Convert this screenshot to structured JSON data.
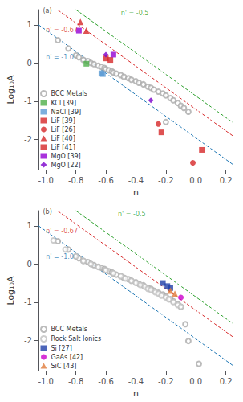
{
  "chart_data": [
    {
      "type": "scatter",
      "xlabel": "n",
      "ylabel": "Log₁₀A",
      "xlim": [
        -1.05,
        0.25
      ],
      "ylim": [
        -2.8,
        1.4
      ],
      "xticks": [
        {
          "value": -1.0,
          "label": "-1.0"
        },
        -0.8,
        -0.6,
        -0.4,
        -0.2,
        {
          "value": 0.0,
          "label": "0.0"
        },
        0.2
      ],
      "yticks": [
        -2,
        -1,
        0,
        1
      ],
      "grid": false,
      "legend": "lower left",
      "series": [
        {
          "type": "line",
          "color": "#2ca02c",
          "line_style": "dashed",
          "x": [
            -0.8,
            0.25
          ],
          "values": [
            1.399,
            -1.5725
          ]
        },
        {
          "type": "line",
          "color": "#d62728",
          "line_style": "dashed",
          "x": [
            -0.92,
            0.25
          ],
          "values": [
            1.3886,
            -1.9225
          ]
        },
        {
          "type": "line",
          "color": "#1f77b4",
          "line_style": "dashed",
          "x": [
            -1.05,
            0.25
          ],
          "values": [
            1.0065,
            -2.6725
          ]
        },
        {
          "name": "BCC Metals",
          "type": "scatter",
          "color": "#aaaaaa",
          "marker": "open_circle",
          "x": [
            -0.92,
            -0.85,
            -0.8,
            -0.78,
            -0.75,
            -0.72,
            -0.7,
            -0.68,
            -0.65,
            -0.63,
            -0.61,
            -0.6,
            -0.58,
            -0.56,
            -0.55,
            -0.53,
            -0.5,
            -0.48,
            -0.45,
            -0.43,
            -0.4,
            -0.38,
            -0.35,
            -0.32,
            -0.3,
            -0.28,
            -0.25,
            -0.22,
            -0.2,
            -0.17,
            -0.15,
            -0.12,
            -0.1,
            -0.08,
            -0.05,
            -0.2
          ],
          "values": [
            0.6,
            0.38,
            0.2,
            0.15,
            0.08,
            0.05,
            0.0,
            -0.03,
            -0.07,
            -0.1,
            -0.13,
            -0.16,
            -0.19,
            -0.22,
            -0.25,
            -0.28,
            -0.32,
            -0.36,
            -0.4,
            -0.44,
            -0.48,
            -0.52,
            -0.56,
            -0.62,
            -0.65,
            -0.7,
            -0.75,
            -0.8,
            -0.85,
            -0.92,
            -0.98,
            -1.05,
            -1.12,
            -1.18,
            -1.28,
            -1.55
          ]
        },
        {
          "name": "KCl [39]",
          "type": "scatter",
          "color": "#4daf4a",
          "marker": "square",
          "x": [
            -0.73
          ],
          "values": [
            -0.02
          ]
        },
        {
          "name": "NaCl [39]",
          "type": "scatter",
          "color": "#5b9bd5",
          "marker": "square",
          "x": [
            -0.63,
            -0.62
          ],
          "values": [
            -0.27,
            -0.29
          ]
        },
        {
          "name": "LiF [39]",
          "type": "scatter",
          "color": "#d62728",
          "marker": "square",
          "x": [
            -0.6,
            -0.57
          ],
          "values": [
            0.12,
            0.08
          ]
        },
        {
          "name": "LiF [26]",
          "type": "scatter",
          "color": "#d62728",
          "marker": "circle",
          "x": [
            -0.25,
            -0.02
          ],
          "values": [
            -1.6,
            -2.62
          ]
        },
        {
          "name": "LiF [40]",
          "type": "scatter",
          "color": "#d62728",
          "marker": "triangle",
          "x": [
            -0.77,
            -0.73
          ],
          "values": [
            1.08,
            0.85
          ]
        },
        {
          "name": "LiF [41]",
          "type": "scatter",
          "color": "#d62728",
          "marker": "square",
          "x": [
            -0.23,
            0.04
          ],
          "values": [
            -1.82,
            -2.28
          ]
        },
        {
          "name": "MgO [39]",
          "type": "scatter",
          "color": "#9400d3",
          "marker": "square",
          "x": [
            -0.78,
            -0.55
          ],
          "values": [
            0.85,
            0.22
          ]
        },
        {
          "name": "MgO [22]",
          "type": "scatter",
          "color": "#7b00cc",
          "marker": "diamond",
          "x": [
            -0.6,
            -0.3
          ],
          "values": [
            0.22,
            -0.98
          ]
        }
      ],
      "annotations": [
        {
          "text": "n' = -0.5",
          "x": -0.5,
          "y": 1.22,
          "color": "#2ca02c"
        },
        {
          "text": "n' = -0.67",
          "x": -1.0,
          "y": 0.78,
          "color": "#d62728"
        },
        {
          "text": "n' = -1.0",
          "x": -1.0,
          "y": 0.05,
          "color": "#1f77b4"
        },
        {
          "text": "(a)",
          "x": -1.02,
          "y": 1.28
        }
      ]
    },
    {
      "type": "scatter",
      "xlabel": "n",
      "ylabel": "Log₁₀A",
      "xlim": [
        -1.05,
        0.25
      ],
      "ylim": [
        -2.8,
        1.4
      ],
      "xticks": [
        {
          "value": -1.0,
          "label": "-1.0"
        },
        -0.8,
        -0.6,
        -0.4,
        -0.2,
        {
          "value": 0.0,
          "label": "0.0"
        },
        0.2
      ],
      "yticks": [
        -2,
        -1,
        0,
        1
      ],
      "grid": false,
      "legend": "lower left",
      "series": [
        {
          "type": "line",
          "color": "#2ca02c",
          "line_style": "dashed",
          "x": [
            -0.8,
            0.25
          ],
          "values": [
            1.399,
            -1.5725
          ]
        },
        {
          "type": "line",
          "color": "#d62728",
          "line_style": "dashed",
          "x": [
            -0.92,
            0.25
          ],
          "values": [
            1.3886,
            -1.9225
          ]
        },
        {
          "type": "line",
          "color": "#1f77b4",
          "line_style": "dashed",
          "x": [
            -1.05,
            0.25
          ],
          "values": [
            1.0065,
            -2.6725
          ]
        },
        {
          "name": "BCC Metals",
          "type": "scatter",
          "color": "#aaaaaa",
          "marker": "open_circle",
          "x": [
            -0.92,
            -0.85,
            -0.8,
            -0.78,
            -0.75,
            -0.72,
            -0.7,
            -0.68,
            -0.65,
            -0.63,
            -0.61,
            -0.6,
            -0.58,
            -0.56,
            -0.55,
            -0.53,
            -0.5,
            -0.48,
            -0.45,
            -0.43,
            -0.4,
            -0.38,
            -0.35,
            -0.32,
            -0.3,
            -0.28,
            -0.25,
            -0.22,
            -0.2,
            -0.17,
            -0.15,
            -0.12,
            -0.1,
            -0.07,
            -0.05,
            0.02
          ],
          "values": [
            0.6,
            0.38,
            0.2,
            0.15,
            0.08,
            0.05,
            0.0,
            -0.03,
            -0.07,
            -0.1,
            -0.13,
            -0.16,
            -0.19,
            -0.22,
            -0.25,
            -0.28,
            -0.32,
            -0.36,
            -0.4,
            -0.44,
            -0.48,
            -0.52,
            -0.56,
            -0.62,
            -0.65,
            -0.7,
            -0.75,
            -0.8,
            -0.85,
            -0.92,
            -0.98,
            -1.05,
            -1.12,
            -1.58,
            -2.02,
            -2.62
          ]
        },
        {
          "name": "Rock Salt Ionics",
          "type": "scatter",
          "color": "#c0c0c0",
          "marker": "open_circle",
          "x": [
            -0.95,
            -0.87,
            -0.8,
            -0.75,
            -0.7,
            -0.65,
            -0.6,
            -0.55,
            -0.5,
            -0.47,
            -0.43,
            -0.4,
            -0.37,
            -0.34,
            -0.32,
            -0.3,
            -0.27,
            -0.25,
            -0.23,
            -0.2,
            -0.18,
            -0.15,
            -0.12,
            -0.1
          ],
          "values": [
            0.62,
            0.38,
            0.2,
            0.08,
            0.0,
            -0.08,
            -0.16,
            -0.24,
            -0.32,
            -0.38,
            -0.44,
            -0.5,
            -0.55,
            -0.6,
            -0.65,
            -0.68,
            -0.74,
            -0.78,
            -0.83,
            -0.88,
            -0.93,
            -1.0,
            -1.08,
            -1.12
          ]
        },
        {
          "name": "Si [27]",
          "type": "scatter",
          "color": "#1f3fa8",
          "marker": "square",
          "x": [
            -0.22,
            -0.19,
            -0.17
          ],
          "values": [
            -0.5,
            -0.58,
            -0.63
          ]
        },
        {
          "name": "GaAs [42]",
          "type": "scatter",
          "color": "#cc00cc",
          "marker": "circle",
          "x": [
            -0.1
          ],
          "values": [
            -0.88
          ]
        },
        {
          "name": "SiC [43]",
          "type": "scatter",
          "color": "#e07b39",
          "marker": "triangle",
          "x": [
            -0.17,
            -0.14
          ],
          "values": [
            -0.7,
            -0.78
          ]
        }
      ],
      "annotations": [
        {
          "text": "n' = -0.5",
          "x": -0.52,
          "y": 1.22,
          "color": "#2ca02c"
        },
        {
          "text": "n' = -0.67",
          "x": -1.0,
          "y": 0.78,
          "color": "#d62728"
        },
        {
          "text": "n' = -1.0",
          "x": -1.0,
          "y": 0.1,
          "color": "#1f77b4"
        },
        {
          "text": "(b)",
          "x": -1.02,
          "y": 1.28
        }
      ]
    }
  ]
}
